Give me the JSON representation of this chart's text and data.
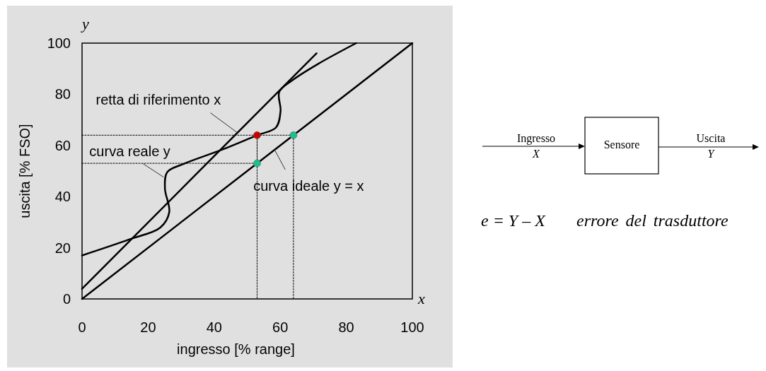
{
  "chart_data": [
    {
      "type": "line",
      "xlabel": "ingresso [% range]",
      "ylabel": "uscita [% FSO]",
      "xlim": [
        0,
        100
      ],
      "ylim": [
        0,
        100
      ],
      "xticks": [
        0,
        20,
        40,
        60,
        80,
        100
      ],
      "yticks": [
        0,
        20,
        40,
        60,
        80,
        100
      ],
      "grid": false,
      "line_style": "solid",
      "series": [
        {
          "type": "line",
          "color": "#000000",
          "x": [
            0,
            100
          ],
          "values": [
            0,
            100
          ]
        },
        {
          "type": "line",
          "color": "#000000",
          "x": [
            0,
            71
          ],
          "values": [
            4,
            96
          ]
        },
        {
          "type": "line",
          "color": "#000000",
          "x": [
            0,
            14.4,
            23.7,
            26.4,
            25.1,
            25.8,
            30.8,
            42.3,
            53,
            58.7,
            60.1,
            59.7,
            63.7,
            71.5,
            83
          ],
          "values": [
            17,
            23.3,
            27.9,
            33.9,
            43.1,
            49.6,
            52.8,
            58.3,
            64,
            67,
            73.5,
            80.9,
            85.5,
            91.9,
            100
          ]
        },
        {
          "type": "line",
          "color": "#000000",
          "line_style": "dotted",
          "x": [
            0,
            64,
            64
          ],
          "values": [
            64,
            64,
            0
          ]
        },
        {
          "type": "line",
          "color": "#000000",
          "line_style": "dotted",
          "x": [
            0,
            53,
            53,
            53
          ],
          "values": [
            53,
            53,
            64,
            0
          ]
        },
        {
          "type": "scatter",
          "color": "#cc0000",
          "marker": "circle",
          "x": [
            53
          ],
          "values": [
            64
          ]
        },
        {
          "type": "scatter",
          "color": "#1dbf8f",
          "marker": "circle",
          "x": [
            53,
            64
          ],
          "values": [
            53,
            64
          ]
        }
      ],
      "annotations": [
        {
          "text": "retta di riferimento x",
          "x": 47,
          "y": 65
        },
        {
          "text": "curva reale y",
          "x": 24.7,
          "y": 47.6
        },
        {
          "text": "curva ideale y = x",
          "x": 58.3,
          "y": 58.3
        },
        "y",
        "x"
      ]
    },
    {
      "type": "other",
      "annotations": [
        "Ingresso",
        "X",
        "Sensore",
        "Uscita",
        "Y",
        "e = Y – X",
        "errore del trasduttore"
      ]
    }
  ]
}
